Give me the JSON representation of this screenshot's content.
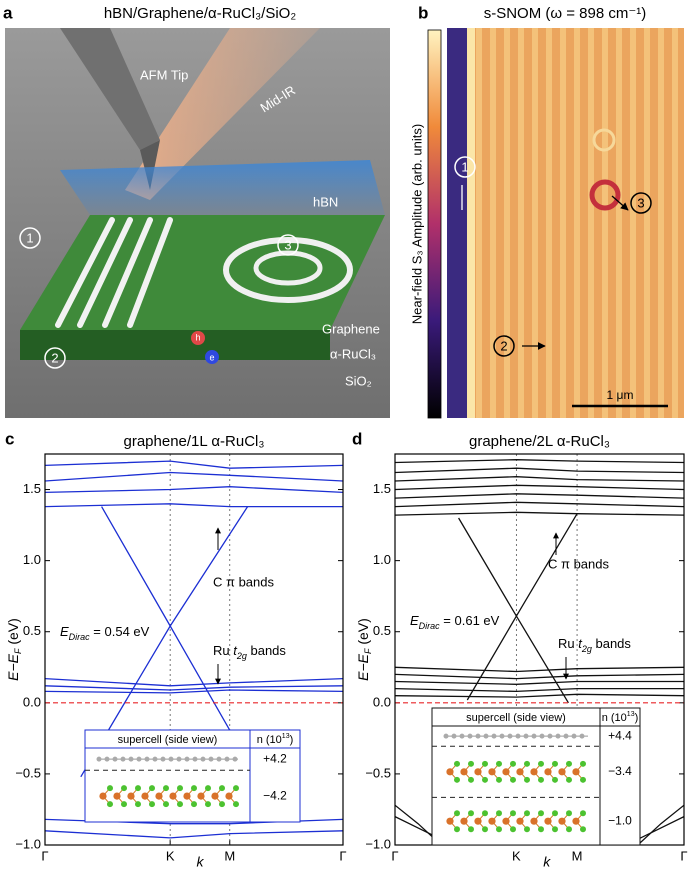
{
  "panel_a": {
    "letter": "a",
    "title": "hBN/Graphene/α-RuCl₃/SiO₂",
    "labels": {
      "afm_tip": "AFM Tip",
      "mid_ir": "Mid-IR",
      "hbn": "hBN",
      "graphene": "Graphene",
      "rucl3": "α-RuCl₃",
      "sio2": "SiO₂",
      "hole": "h",
      "electron": "e"
    },
    "markers": [
      "1",
      "2",
      "3"
    ]
  },
  "panel_b": {
    "letter": "b",
    "title": "s-SNOM (ω = 898 cm⁻¹)",
    "colorbar_label": "Near-field S₃ Amplitude (arb. units)",
    "scale_bar": "1 μm",
    "markers": [
      "1",
      "2",
      "3"
    ]
  },
  "chart_data": [
    {
      "type": "line",
      "letter": "c",
      "title": "graphene/1L α-RuCl₃",
      "xlabel": "k",
      "ylabel": {
        "main": "E−E",
        "sub": "F",
        "unit": " (eV)"
      },
      "xlim": [
        0,
        1
      ],
      "xticks": [
        {
          "value": 0,
          "label": "Γ"
        },
        {
          "value": 0.42,
          "label": "K"
        },
        {
          "value": 0.62,
          "label": "M"
        },
        {
          "value": 1,
          "label": "Γ"
        }
      ],
      "ylim": [
        -1,
        1.75
      ],
      "yticks": [
        {
          "value": -1,
          "label": "−1.0"
        },
        {
          "value": -0.5,
          "label": "−0.5"
        },
        {
          "value": 0,
          "label": "0.0"
        },
        0.5,
        {
          "value": 1,
          "label": "1.0"
        },
        1.5
      ],
      "x_grid": "dotted",
      "color": "#1c2fd3",
      "reference_line": {
        "value": 0,
        "color": "#e8262a"
      },
      "series": [
        {
          "x": [
            0.19,
            0.42,
            0.72
          ],
          "values": [
            1.38,
            0.54,
            -0.56
          ]
        },
        {
          "x": [
            0.12,
            0.42,
            0.68
          ],
          "values": [
            -0.52,
            0.54,
            1.38
          ]
        },
        {
          "x": [
            0,
            0.42,
            0.62,
            1
          ],
          "values": [
            0.17,
            0.12,
            0.14,
            0.17
          ]
        },
        {
          "x": [
            0,
            0.42,
            0.62,
            1
          ],
          "values": [
            0.12,
            0.09,
            0.11,
            0.12
          ]
        },
        {
          "x": [
            0,
            0.42,
            0.62,
            1
          ],
          "values": [
            0.08,
            0.07,
            0.09,
            0.08
          ]
        },
        {
          "x": [
            0,
            0.42,
            0.62,
            1
          ],
          "values": [
            1.38,
            1.4,
            1.38,
            1.38
          ]
        },
        {
          "x": [
            0,
            0.42,
            0.62,
            1
          ],
          "values": [
            1.48,
            1.5,
            1.52,
            1.48
          ]
        },
        {
          "x": [
            0,
            0.42,
            0.62,
            1
          ],
          "values": [
            1.56,
            1.62,
            1.6,
            1.56
          ]
        },
        {
          "x": [
            0,
            0.42,
            0.62,
            1
          ],
          "values": [
            1.67,
            1.7,
            1.65,
            1.67
          ]
        },
        {
          "x": [
            0,
            0.42,
            0.62,
            1
          ],
          "values": [
            -0.82,
            -0.85,
            -0.85,
            -0.82
          ]
        },
        {
          "x": [
            0,
            0.42,
            0.62,
            1
          ],
          "values": [
            -0.9,
            -0.95,
            -0.92,
            -0.9
          ]
        }
      ],
      "annotations": {
        "dirac": {
          "symbol": "E",
          "sub": "Dirac",
          "text": " = 0.54 eV"
        },
        "c_bands": "C π bands",
        "ru_bands": {
          "pre": "Ru ",
          "symbol": "t",
          "sub": "2g",
          "post": " bands"
        }
      },
      "inset": {
        "header": {
          "cell": "supercell (side view)",
          "n": {
            "main": "n (10",
            "sup": "13",
            "tail": ")"
          }
        },
        "rows": [
          "+4.2",
          "−4.2"
        ]
      }
    },
    {
      "type": "line",
      "letter": "d",
      "title": "graphene/2L α-RuCl₃",
      "xlabel": "k",
      "ylabel": {
        "main": "E−E",
        "sub": "F",
        "unit": " (eV)"
      },
      "xlim": [
        0,
        1
      ],
      "xticks": [
        {
          "value": 0,
          "label": "Γ"
        },
        {
          "value": 0.42,
          "label": "K"
        },
        {
          "value": 0.63,
          "label": "M"
        },
        {
          "value": 1,
          "label": "Γ"
        }
      ],
      "ylim": [
        -1,
        1.75
      ],
      "yticks": [
        {
          "value": -1,
          "label": "−1.0"
        },
        {
          "value": -0.5,
          "label": "−0.5"
        },
        {
          "value": 0,
          "label": "0.0"
        },
        0.5,
        {
          "value": 1,
          "label": "1.0"
        },
        1.5
      ],
      "x_grid": "dotted",
      "color": "#111111",
      "reference_line": {
        "value": 0,
        "color": "#e8262a"
      },
      "series": [
        {
          "x": [
            0.22,
            0.42,
            0.6
          ],
          "values": [
            1.3,
            0.61,
            0.0
          ]
        },
        {
          "x": [
            0.25,
            0.42,
            0.63
          ],
          "values": [
            0.02,
            0.61,
            1.33
          ]
        },
        {
          "x": [
            0,
            0.42,
            0.63,
            1
          ],
          "values": [
            0.25,
            0.22,
            0.24,
            0.25
          ]
        },
        {
          "x": [
            0,
            0.42,
            0.63,
            1
          ],
          "values": [
            0.2,
            0.17,
            0.19,
            0.2
          ]
        },
        {
          "x": [
            0,
            0.42,
            0.63,
            1
          ],
          "values": [
            0.15,
            0.13,
            0.15,
            0.15
          ]
        },
        {
          "x": [
            0,
            0.42,
            0.63,
            1
          ],
          "values": [
            0.1,
            0.08,
            0.1,
            0.1
          ]
        },
        {
          "x": [
            0,
            0.42,
            0.63,
            1
          ],
          "values": [
            0.05,
            0.04,
            0.06,
            0.05
          ]
        },
        {
          "x": [
            0,
            0.42,
            0.63,
            1
          ],
          "values": [
            1.32,
            1.34,
            1.33,
            1.32
          ]
        },
        {
          "x": [
            0,
            0.42,
            0.63,
            1
          ],
          "values": [
            1.38,
            1.41,
            1.4,
            1.38
          ]
        },
        {
          "x": [
            0,
            0.42,
            0.63,
            1
          ],
          "values": [
            1.44,
            1.47,
            1.46,
            1.44
          ]
        },
        {
          "x": [
            0,
            0.42,
            0.63,
            1
          ],
          "values": [
            1.5,
            1.53,
            1.52,
            1.5
          ]
        },
        {
          "x": [
            0,
            0.42,
            0.63,
            1
          ],
          "values": [
            1.56,
            1.59,
            1.57,
            1.56
          ]
        },
        {
          "x": [
            0,
            0.42,
            0.63,
            1
          ],
          "values": [
            1.62,
            1.65,
            1.63,
            1.62
          ]
        },
        {
          "x": [
            0,
            0.42,
            0.63,
            1
          ],
          "values": [
            1.69,
            1.71,
            1.7,
            1.69
          ]
        },
        {
          "x": [
            0,
            0.08,
            0.16
          ],
          "values": [
            -0.72,
            -0.85,
            -1.0
          ]
        },
        {
          "x": [
            0,
            0.1,
            0.2
          ],
          "values": [
            -0.8,
            -0.9,
            -1.0
          ]
        },
        {
          "x": [
            0.84,
            0.92,
            1
          ],
          "values": [
            -1.0,
            -0.85,
            -0.72
          ]
        },
        {
          "x": [
            0.8,
            0.9,
            1
          ],
          "values": [
            -1.0,
            -0.9,
            -0.8
          ]
        }
      ],
      "annotations": {
        "dirac": {
          "symbol": "E",
          "sub": "Dirac",
          "text": " = 0.61 eV"
        },
        "c_bands": "C π bands",
        "ru_bands": {
          "pre": "Ru ",
          "symbol": "t",
          "sub": "2g",
          "post": " bands"
        }
      },
      "inset": {
        "header": {
          "cell": "supercell (side view)",
          "n": {
            "main": "n (10",
            "sup": "13",
            "tail": ")"
          }
        },
        "rows": [
          "+4.4",
          "−3.4",
          "−1.0"
        ]
      }
    }
  ]
}
